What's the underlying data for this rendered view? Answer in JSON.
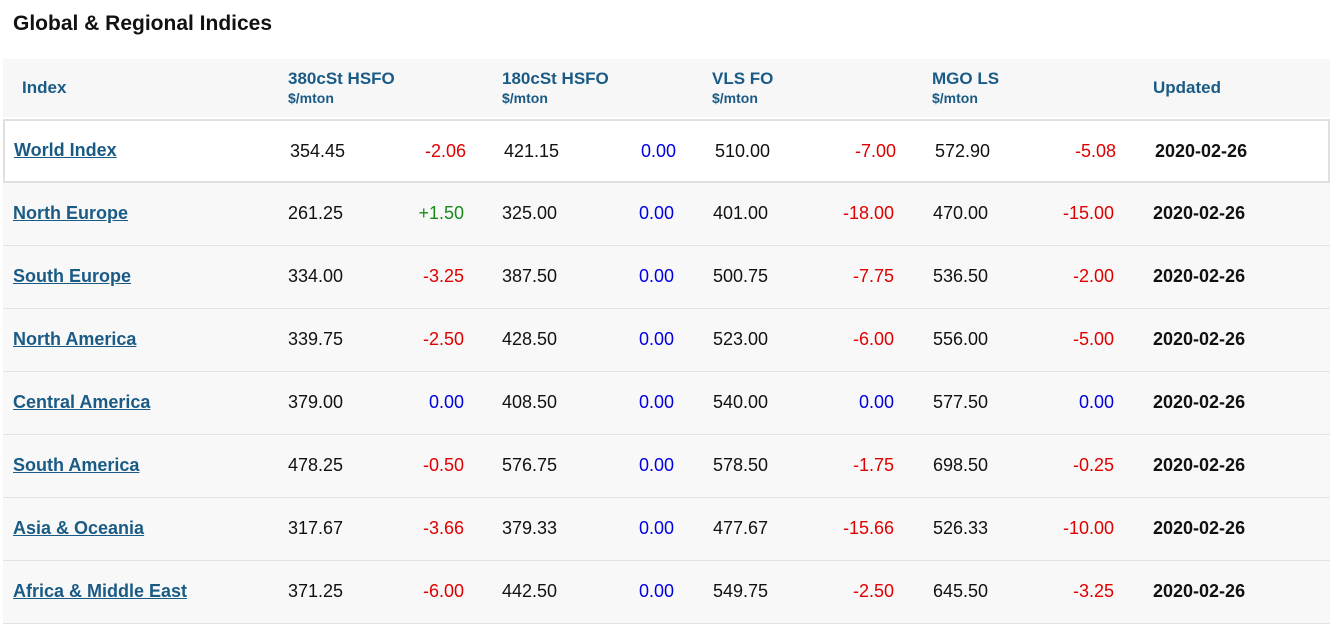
{
  "title": "Global & Regional Indices",
  "headers": {
    "index": "Index",
    "c380": {
      "label": "380cSt HSFO",
      "unit": "$/mton"
    },
    "c180": {
      "label": "180cSt HSFO",
      "unit": "$/mton"
    },
    "vlsfo": {
      "label": "VLS FO",
      "unit": "$/mton"
    },
    "mgo": {
      "label": "MGO LS",
      "unit": "$/mton"
    },
    "updated": "Updated"
  },
  "colors": {
    "accent": "#1a5b86",
    "negative": "#e00000",
    "positive": "#1a8a1a",
    "zero": "#0000e0"
  },
  "rows": [
    {
      "name": "World Index",
      "v380": "354.45",
      "c380": "-2.06",
      "v180": "421.15",
      "c180": "0.00",
      "vls": "510.00",
      "cvls": "-7.00",
      "mgo": "572.90",
      "cmgo": "-5.08",
      "date": "2020-02-26"
    },
    {
      "name": "North Europe",
      "v380": "261.25",
      "c380": "+1.50",
      "v180": "325.00",
      "c180": "0.00",
      "vls": "401.00",
      "cvls": "-18.00",
      "mgo": "470.00",
      "cmgo": "-15.00",
      "date": "2020-02-26"
    },
    {
      "name": "South Europe",
      "v380": "334.00",
      "c380": "-3.25",
      "v180": "387.50",
      "c180": "0.00",
      "vls": "500.75",
      "cvls": "-7.75",
      "mgo": "536.50",
      "cmgo": "-2.00",
      "date": "2020-02-26"
    },
    {
      "name": "North America",
      "v380": "339.75",
      "c380": "-2.50",
      "v180": "428.50",
      "c180": "0.00",
      "vls": "523.00",
      "cvls": "-6.00",
      "mgo": "556.00",
      "cmgo": "-5.00",
      "date": "2020-02-26"
    },
    {
      "name": "Central America",
      "v380": "379.00",
      "c380": "0.00",
      "v180": "408.50",
      "c180": "0.00",
      "vls": "540.00",
      "cvls": "0.00",
      "mgo": "577.50",
      "cmgo": "0.00",
      "date": "2020-02-26"
    },
    {
      "name": "South America",
      "v380": "478.25",
      "c380": "-0.50",
      "v180": "576.75",
      "c180": "0.00",
      "vls": "578.50",
      "cvls": "-1.75",
      "mgo": "698.50",
      "cmgo": "-0.25",
      "date": "2020-02-26"
    },
    {
      "name": "Asia & Oceania",
      "v380": "317.67",
      "c380": "-3.66",
      "v180": "379.33",
      "c180": "0.00",
      "vls": "477.67",
      "cvls": "-15.66",
      "mgo": "526.33",
      "cmgo": "-10.00",
      "date": "2020-02-26"
    },
    {
      "name": "Africa & Middle East",
      "v380": "371.25",
      "c380": "-6.00",
      "v180": "442.50",
      "c180": "0.00",
      "vls": "549.75",
      "cvls": "-2.50",
      "mgo": "645.50",
      "cmgo": "-3.25",
      "date": "2020-02-26"
    }
  ]
}
